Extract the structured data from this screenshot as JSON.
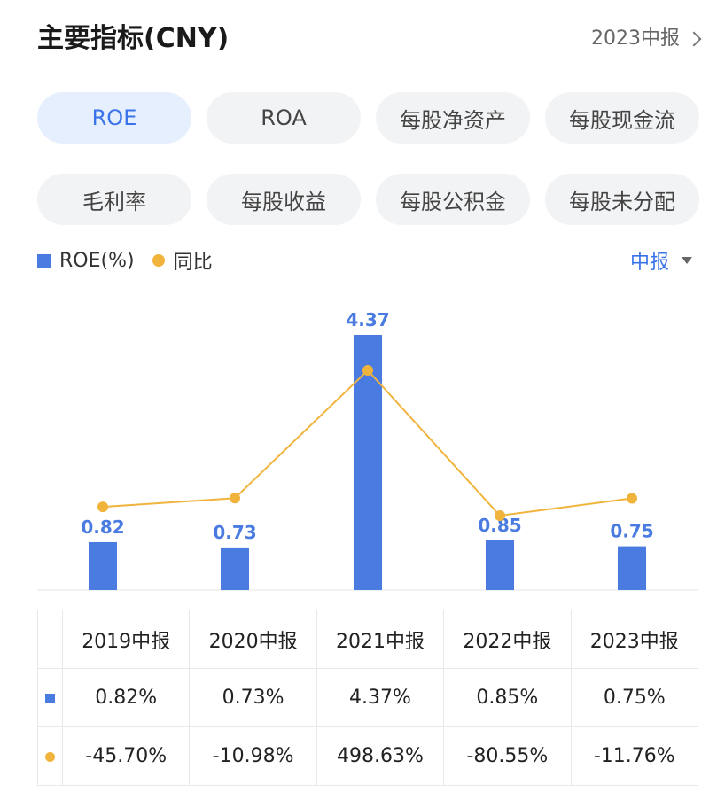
{
  "header": {
    "title": "主要指标(CNY)",
    "period_link": "2023中报"
  },
  "tabs": [
    "ROE",
    "ROA",
    "每股净资产",
    "每股现金流",
    "毛利率",
    "每股收益",
    "每股公积金",
    "每股未分配"
  ],
  "legend": {
    "bar_label": "ROE(%)",
    "line_label": "同比"
  },
  "period_select": "中报",
  "colors": {
    "bar": "#4a7be0",
    "line": "#f0b43c",
    "negative": "#2f9a5a",
    "positive": "#e2504a",
    "accent": "#3b74e8"
  },
  "chart_data": {
    "type": "bar",
    "categories": [
      "2019中报",
      "2020中报",
      "2021中报",
      "2022中报",
      "2023中报"
    ],
    "series": [
      {
        "name": "ROE(%)",
        "type": "bar",
        "values": [
          0.82,
          0.73,
          4.37,
          0.85,
          0.75
        ]
      },
      {
        "name": "同比",
        "type": "line",
        "values": [
          -45.7,
          -10.98,
          498.63,
          -80.55,
          -11.76
        ]
      }
    ],
    "data_labels": [
      "0.82",
      "0.73",
      "4.37",
      "0.85",
      "0.75"
    ]
  },
  "table": {
    "headers": [
      "2019中报",
      "2020中报",
      "2021中报",
      "2022中报",
      "2023中报"
    ],
    "roe_row": [
      "0.82%",
      "0.73%",
      "4.37%",
      "0.85%",
      "0.75%"
    ],
    "yoy_row": [
      "-45.70%",
      "-10.98%",
      "498.63%",
      "-80.55%",
      "-11.76%"
    ]
  }
}
